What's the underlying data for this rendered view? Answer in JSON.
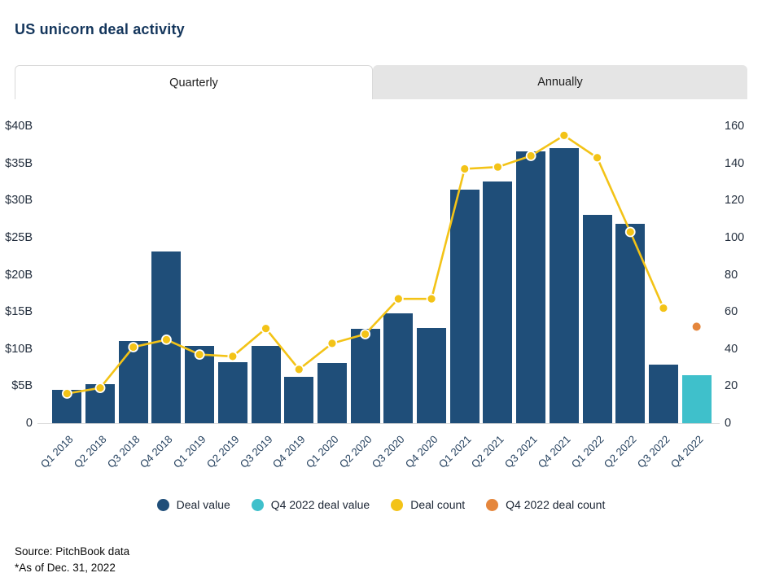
{
  "title": "US unicorn deal activity",
  "tabs": [
    {
      "label": "Quarterly",
      "active": true
    },
    {
      "label": "Annually",
      "active": false
    }
  ],
  "chart_data": {
    "type": "combo-bar-line-dual-axis",
    "categories": [
      "Q1 2018",
      "Q2 2018",
      "Q3 2018",
      "Q4 2018",
      "Q1 2019",
      "Q2 2019",
      "Q3 2019",
      "Q4 2019",
      "Q1 2020",
      "Q2 2020",
      "Q3 2020",
      "Q4 2020",
      "Q1 2021",
      "Q2 2021",
      "Q3 2021",
      "Q4 2021",
      "Q1 2022",
      "Q2 2022",
      "Q3 2022",
      "Q4 2022"
    ],
    "series": [
      {
        "name": "Deal value",
        "type": "bar",
        "axis": "left",
        "color": "#1F4E79",
        "values": [
          4.5,
          5.3,
          11.1,
          23.1,
          10.4,
          8.2,
          10.4,
          6.3,
          8.1,
          12.7,
          14.8,
          12.8,
          31.5,
          32.5,
          36.6,
          37.0,
          28.1,
          26.9,
          7.9,
          null
        ]
      },
      {
        "name": "Q4 2022 deal value",
        "type": "bar",
        "axis": "left",
        "color": "#3FC0CB",
        "values": [
          null,
          null,
          null,
          null,
          null,
          null,
          null,
          null,
          null,
          null,
          null,
          null,
          null,
          null,
          null,
          null,
          null,
          null,
          null,
          6.5
        ]
      },
      {
        "name": "Deal count",
        "type": "line",
        "axis": "right",
        "color": "#F3C317",
        "values": [
          16,
          19,
          41,
          45,
          37,
          36,
          51,
          29,
          43,
          48,
          67,
          67,
          137,
          138,
          144,
          155,
          143,
          103,
          62,
          null
        ]
      },
      {
        "name": "Q4 2022 deal count",
        "type": "scatter",
        "axis": "right",
        "color": "#E5863C",
        "values": [
          null,
          null,
          null,
          null,
          null,
          null,
          null,
          null,
          null,
          null,
          null,
          null,
          null,
          null,
          null,
          null,
          null,
          null,
          null,
          52
        ]
      }
    ],
    "left_axis": {
      "range": [
        0,
        40
      ],
      "ticks": [
        {
          "v": 40,
          "label": "$40B"
        },
        {
          "v": 35,
          "label": "$35B"
        },
        {
          "v": 30,
          "label": "$30B"
        },
        {
          "v": 25,
          "label": "$25B"
        },
        {
          "v": 20,
          "label": "$20B"
        },
        {
          "v": 15,
          "label": "$15B"
        },
        {
          "v": 10,
          "label": "$10B"
        },
        {
          "v": 5,
          "label": "$5B"
        },
        {
          "v": 0,
          "label": "0"
        }
      ]
    },
    "right_axis": {
      "range": [
        0,
        160
      ],
      "ticks": [
        {
          "v": 160,
          "label": "160"
        },
        {
          "v": 140,
          "label": "140"
        },
        {
          "v": 120,
          "label": "120"
        },
        {
          "v": 100,
          "label": "100"
        },
        {
          "v": 80,
          "label": "80"
        },
        {
          "v": 60,
          "label": "60"
        },
        {
          "v": 40,
          "label": "40"
        },
        {
          "v": 20,
          "label": "20"
        },
        {
          "v": 0,
          "label": "0"
        }
      ]
    },
    "grid": false,
    "legend_position": "bottom-center",
    "line_dot_stroke": "#FFFFFF",
    "axis_line_color": "#D8D8D8"
  },
  "footer": {
    "source": "Source: PitchBook data",
    "asof": "*As of Dec. 31, 2022"
  }
}
